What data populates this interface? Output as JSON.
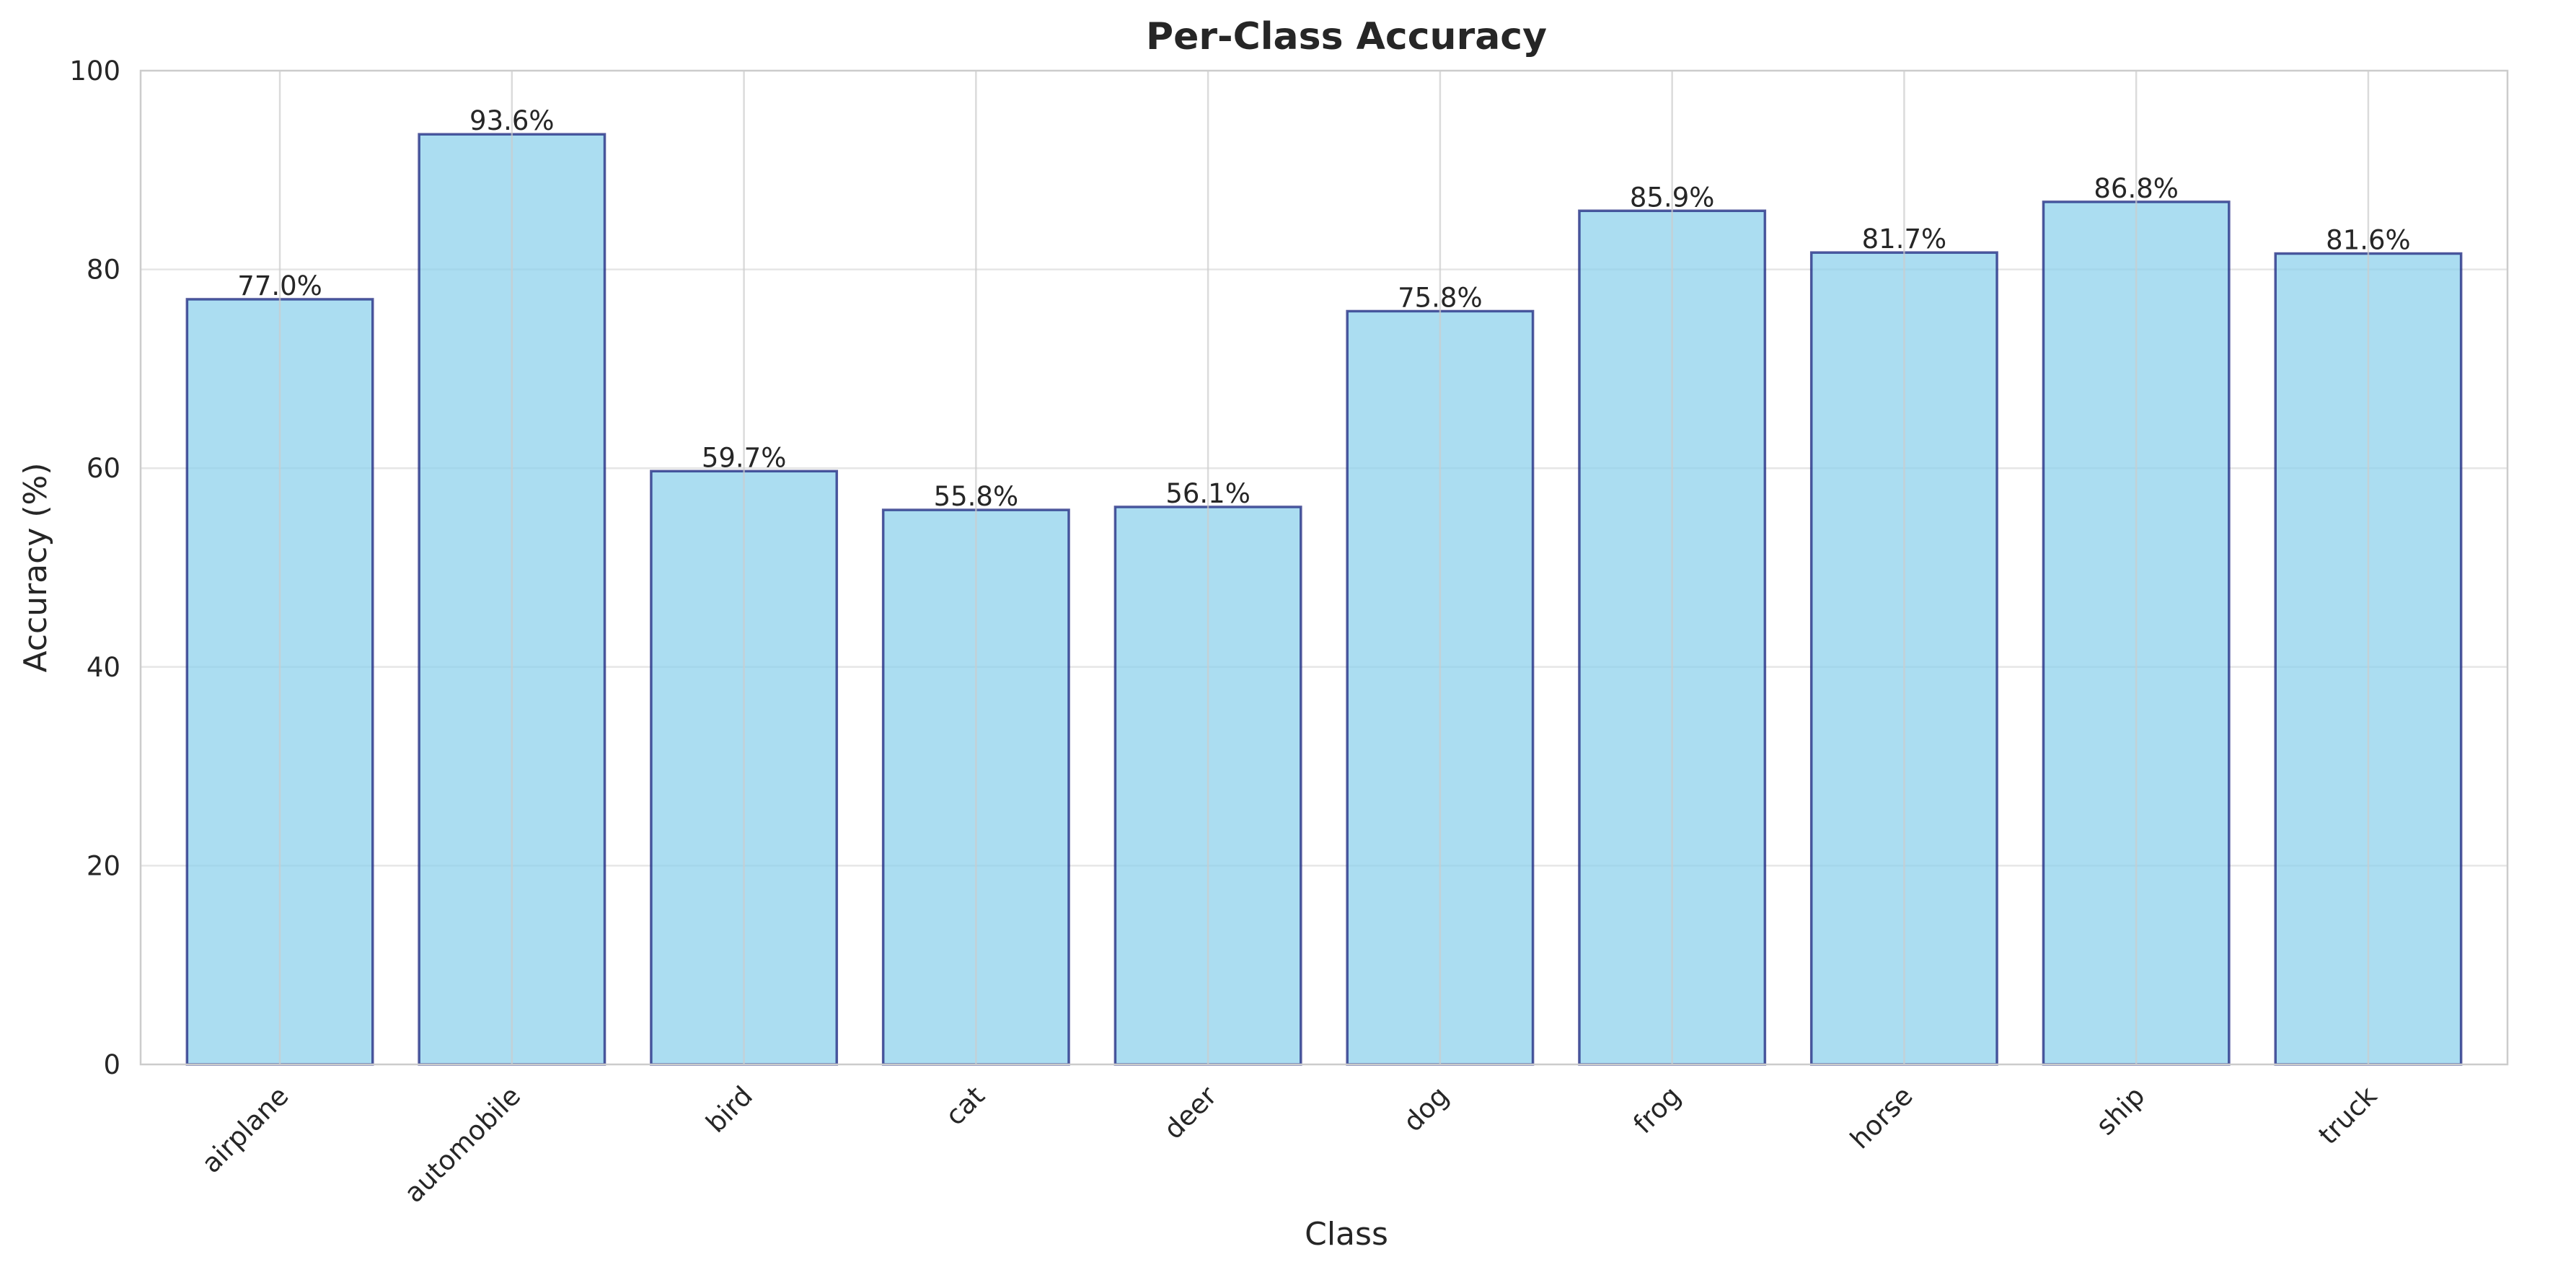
{
  "chart_data": {
    "type": "bar",
    "title": "Per-Class Accuracy",
    "xlabel": "Class",
    "ylabel": "Accuracy (%)",
    "categories": [
      "airplane",
      "automobile",
      "bird",
      "cat",
      "deer",
      "dog",
      "frog",
      "horse",
      "ship",
      "truck"
    ],
    "values": [
      77.0,
      93.6,
      59.7,
      55.8,
      56.1,
      75.8,
      85.9,
      81.7,
      86.8,
      81.6
    ],
    "value_labels": [
      "77.0%",
      "93.6%",
      "59.7%",
      "55.8%",
      "56.1%",
      "75.8%",
      "85.9%",
      "81.7%",
      "86.8%",
      "81.6%"
    ],
    "ylim": [
      0,
      100
    ],
    "yticks": [
      0,
      20,
      40,
      60,
      80,
      100
    ],
    "ytick_labels": [
      "0",
      "20",
      "40",
      "60",
      "80",
      "100"
    ],
    "grid": true,
    "colors": {
      "bar_fill": "#87CEEB",
      "bar_edge": "#1a237e",
      "grid": "#e6e6e6",
      "vgrid": "#cccccc",
      "frame": "#cccccc"
    }
  }
}
